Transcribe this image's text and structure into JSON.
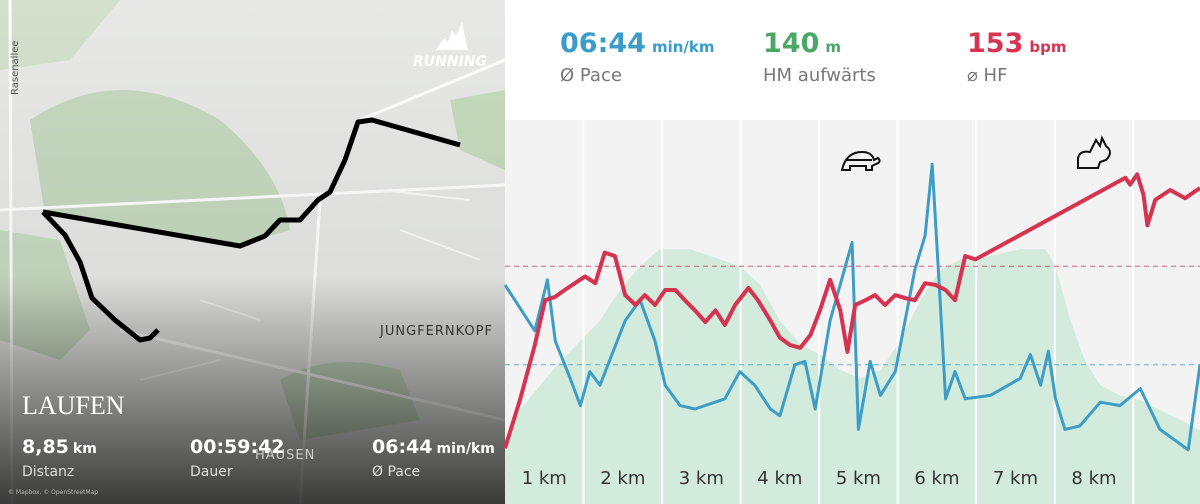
{
  "map": {
    "brand": "RUNNING",
    "place_labels": [
      "Rasenallee",
      "JUNGFERNKOPF",
      "HAUSEN"
    ],
    "title": "LAUFEN",
    "attribution": "© Mapbox, © OpenStreetMap",
    "stats": [
      {
        "value": "8,85",
        "unit": "km",
        "label": "Distanz"
      },
      {
        "value": "00:59:42",
        "label": "Dauer"
      },
      {
        "value": "06:44",
        "unit": "min/km",
        "label": "Ø Pace"
      }
    ]
  },
  "summary": [
    {
      "value": "06:44",
      "unit": "min/km",
      "label": "Ø Pace",
      "color": "#3a9cc9"
    },
    {
      "value": "140",
      "unit": "m",
      "label": "HM aufwärts",
      "color": "#4aa866"
    },
    {
      "value": "153",
      "unit": "bpm",
      "label": "⌀ HF",
      "color": "#d63552"
    }
  ],
  "chart_data": {
    "type": "line",
    "xlim": [
      0,
      8.85
    ],
    "ylim": [
      0,
      100
    ],
    "xticks": [
      1,
      2,
      3,
      4,
      5,
      6,
      7,
      8
    ],
    "categories": [
      "1 km",
      "2 km",
      "3 km",
      "4 km",
      "5 km",
      "6 km",
      "7 km",
      "8 km"
    ],
    "grid": true,
    "series": [
      {
        "color": "#d3ebdc",
        "fill": true,
        "x": [
          0,
          0.19,
          0.45,
          0.7,
          0.96,
          1.21,
          1.46,
          1.72,
          1.97,
          2.36,
          2.74,
          2.99,
          3.25,
          3.5,
          3.76,
          4.01,
          4.27,
          4.52,
          4.78,
          5.03,
          5.29,
          5.54,
          5.8,
          6.18,
          6.56,
          6.88,
          7.01,
          7.2,
          7.39,
          7.58,
          7.83,
          8.09,
          8.34,
          8.6,
          8.85
        ],
        "values": [
          5.9,
          14.7,
          22,
          29,
          35,
          41,
          50,
          57,
          62,
          62,
          59,
          57,
          51.5,
          41,
          34,
          31,
          26.5,
          24,
          26.5,
          35,
          47,
          56,
          59,
          60,
          62,
          62,
          57,
          41,
          29,
          22,
          19,
          17.6,
          14.7,
          11.8,
          8.8
        ]
      },
      {
        "color": "#3e9dc6",
        "average": 28,
        "x": [
          0,
          0.38,
          0.54,
          0.64,
          0.83,
          0.96,
          1.08,
          1.21,
          1.53,
          1.72,
          1.91,
          2.04,
          2.23,
          2.42,
          2.8,
          2.99,
          3.18,
          3.38,
          3.5,
          3.69,
          3.82,
          3.95,
          4.14,
          4.42,
          4.5,
          4.65,
          4.78,
          4.97,
          5.22,
          5.35,
          5.44,
          5.54,
          5.61,
          5.73,
          5.86,
          6.18,
          6.56,
          6.69,
          6.82,
          6.92,
          7.01,
          7.13,
          7.32,
          7.58,
          7.83,
          8.09,
          8.34,
          8.7,
          8.85
        ],
        "values": [
          51.5,
          38,
          53,
          35,
          24,
          16,
          26,
          22,
          41,
          47,
          35,
          22,
          16,
          15,
          18,
          26,
          22,
          15,
          13,
          28,
          29,
          15,
          41,
          64,
          9,
          29,
          19,
          26,
          56,
          66,
          87,
          47,
          18,
          26,
          18,
          19,
          24,
          31,
          22,
          32,
          18,
          9,
          10,
          17,
          16,
          21,
          9,
          3,
          28
        ]
      },
      {
        "color": "#d5334f",
        "average": 57,
        "x": [
          0,
          0.19,
          0.38,
          0.51,
          0.64,
          0.76,
          0.89,
          1.02,
          1.15,
          1.27,
          1.4,
          1.53,
          1.66,
          1.78,
          1.91,
          2.04,
          2.17,
          2.29,
          2.42,
          2.55,
          2.68,
          2.8,
          2.93,
          3.1,
          3.22,
          3.38,
          3.5,
          3.63,
          3.76,
          3.89,
          4.01,
          4.14,
          4.27,
          4.36,
          4.46,
          4.59,
          4.71,
          4.84,
          4.97,
          5.1,
          5.22,
          5.35,
          5.48,
          5.61,
          5.73,
          5.86,
          5.99,
          7.9,
          7.96,
          8.05,
          8.13,
          8.18,
          8.28,
          8.47,
          8.66,
          8.85
        ],
        "values": [
          3.5,
          17.6,
          33.8,
          47,
          48,
          50,
          52,
          54,
          52,
          61,
          60,
          48.5,
          45.6,
          48.5,
          45.6,
          50,
          50,
          47,
          44,
          40.6,
          44,
          39.7,
          45.6,
          50.6,
          47,
          41,
          36,
          33.8,
          33,
          36.8,
          44,
          53,
          44,
          31.8,
          45.6,
          47,
          48.5,
          45.6,
          48.5,
          47.6,
          47,
          52,
          51.5,
          50,
          47,
          60,
          59,
          83,
          81,
          84,
          78,
          69,
          76.5,
          79.4,
          77,
          80
        ]
      }
    ]
  }
}
